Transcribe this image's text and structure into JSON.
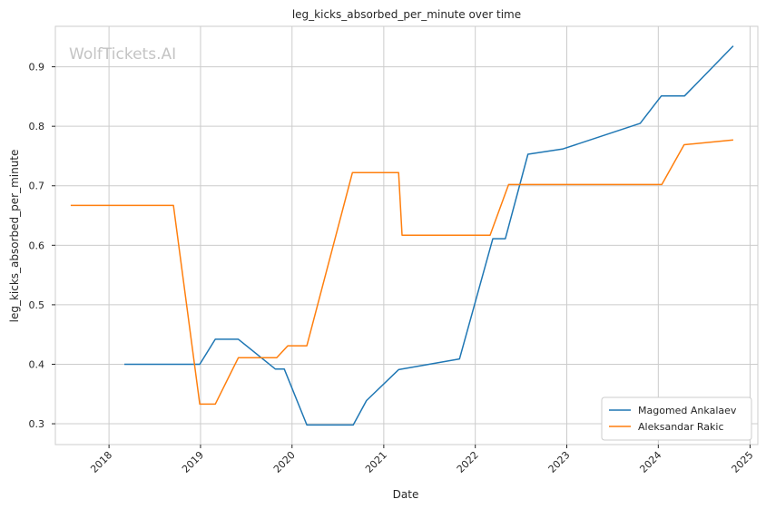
{
  "watermark": "WolfTickets.AI",
  "chart_data": {
    "type": "line",
    "title": "leg_kicks_absorbed_per_minute over time",
    "xlabel": "Date",
    "ylabel": "leg_kicks_absorbed_per_minute",
    "x_ticks": [
      "2018",
      "2019",
      "2020",
      "2021",
      "2022",
      "2023",
      "2024",
      "2025"
    ],
    "y_ticks": [
      "0.3",
      "0.4",
      "0.5",
      "0.6",
      "0.7",
      "0.8",
      "0.9"
    ],
    "xlim": [
      "2017-06-01",
      "2025-02-01"
    ],
    "ylim": [
      0.265,
      0.968
    ],
    "grid": true,
    "legend_position": "lower-right",
    "series": [
      {
        "name": "Magomed Ankalaev",
        "color": "#1f77b4",
        "points": [
          [
            "2018-03-03",
            0.4
          ],
          [
            "2018-12-29",
            0.4
          ],
          [
            "2019-03-01",
            0.442
          ],
          [
            "2019-06-01",
            0.442
          ],
          [
            "2019-10-26",
            0.392
          ],
          [
            "2019-12-01",
            0.392
          ],
          [
            "2020-02-29",
            0.298
          ],
          [
            "2020-09-01",
            0.298
          ],
          [
            "2020-10-24",
            0.339
          ],
          [
            "2021-03-01",
            0.391
          ],
          [
            "2021-10-30",
            0.409
          ],
          [
            "2022-03-12",
            0.611
          ],
          [
            "2022-05-01",
            0.611
          ],
          [
            "2022-07-30",
            0.753
          ],
          [
            "2022-12-17",
            0.762
          ],
          [
            "2023-10-21",
            0.805
          ],
          [
            "2024-01-13",
            0.851
          ],
          [
            "2024-04-15",
            0.851
          ],
          [
            "2024-10-26",
            0.935
          ]
        ]
      },
      {
        "name": "Aleksandar Rakic",
        "color": "#ff7f0e",
        "points": [
          [
            "2017-08-01",
            0.667
          ],
          [
            "2018-09-15",
            0.667
          ],
          [
            "2018-12-29",
            0.333
          ],
          [
            "2019-03-01",
            0.333
          ],
          [
            "2019-06-01",
            0.411
          ],
          [
            "2019-11-01",
            0.411
          ],
          [
            "2019-12-15",
            0.431
          ],
          [
            "2020-02-29",
            0.431
          ],
          [
            "2020-08-29",
            0.722
          ],
          [
            "2021-03-01",
            0.722
          ],
          [
            "2021-03-15",
            0.617
          ],
          [
            "2022-03-01",
            0.617
          ],
          [
            "2022-05-14",
            0.702
          ],
          [
            "2024-01-15",
            0.702
          ],
          [
            "2024-04-13",
            0.769
          ],
          [
            "2024-10-26",
            0.777
          ]
        ]
      }
    ]
  }
}
